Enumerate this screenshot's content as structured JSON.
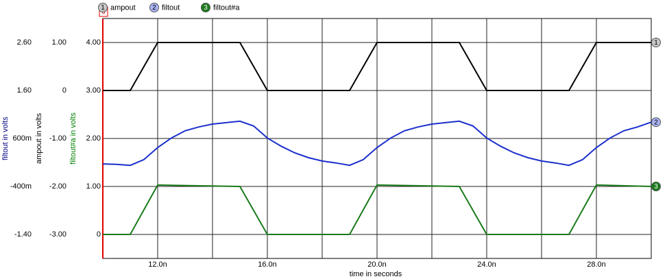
{
  "chart_data": {
    "type": "line",
    "cursor_label": "0",
    "x_label": "time in seconds",
    "xlim": [
      10,
      30
    ],
    "xticks": [
      {
        "value": 12,
        "label": "12.0n"
      },
      {
        "value": 16,
        "label": "16.0n"
      },
      {
        "value": 20,
        "label": "20.0n"
      },
      {
        "value": 24,
        "label": "24.0n"
      },
      {
        "value": 28,
        "label": "28.0n"
      }
    ],
    "xgrid_minor": [
      14,
      18,
      22,
      26
    ],
    "grid": true,
    "axes": [
      {
        "label": "filtout in volts",
        "color": "#000080",
        "ylim": [
          -1.9,
          3.1
        ],
        "yticks": [
          {
            "value": -1.4,
            "label": "-1.40"
          },
          {
            "value": -0.4,
            "label": "-400m"
          },
          {
            "value": 0.6,
            "label": "600m"
          },
          {
            "value": 1.6,
            "label": "1.60"
          },
          {
            "value": 2.6,
            "label": "2.60"
          }
        ]
      },
      {
        "label": "ampout in volts",
        "color": "#000000",
        "ylim": [
          -3.5,
          1.5
        ],
        "yticks": [
          {
            "value": -3,
            "label": "-3.00"
          },
          {
            "value": -2,
            "label": "-2.00"
          },
          {
            "value": -1,
            "label": "-1.00"
          },
          0,
          {
            "value": 1,
            "label": "1.00"
          }
        ]
      },
      {
        "label": "filtout#a in volts",
        "color": "#008000",
        "ylim": [
          -0.5,
          4.5
        ],
        "yticks": [
          0,
          {
            "value": 1,
            "label": "1.00"
          },
          {
            "value": 2,
            "label": "2.00"
          },
          {
            "value": 3,
            "label": "3.00"
          },
          {
            "value": 4,
            "label": "4.00"
          }
        ]
      }
    ],
    "series": [
      {
        "name": "ampout",
        "marker": "1",
        "marker_fill": "#c8c8c8",
        "marker_text": "#000000",
        "color": "#000000",
        "axis": 1,
        "x": [
          10,
          11,
          12,
          15,
          16,
          19,
          20,
          23,
          24,
          27,
          28,
          30
        ],
        "values": [
          0,
          0,
          1,
          1,
          0,
          0,
          1,
          1,
          0,
          0,
          1,
          1
        ]
      },
      {
        "name": "filtout",
        "marker": "2",
        "marker_fill": "#aab4f5",
        "marker_text": "#000000",
        "color": "#1a2ecc",
        "axis": 0,
        "x": [
          10,
          10.5,
          11,
          11.5,
          12,
          12.5,
          13,
          13.5,
          14,
          14.5,
          15,
          15.5,
          16,
          16.5,
          17,
          17.5,
          18,
          18.5,
          19,
          19.5,
          20,
          20.5,
          21,
          21.5,
          22,
          22.5,
          23,
          23.5,
          24,
          24.5,
          25,
          25.5,
          26,
          26.5,
          27,
          27.5,
          28,
          28.5,
          29,
          29.5,
          30
        ],
        "values": [
          0.07,
          0.06,
          0.04,
          0.16,
          0.41,
          0.61,
          0.76,
          0.84,
          0.9,
          0.93,
          0.96,
          0.86,
          0.61,
          0.44,
          0.3,
          0.2,
          0.13,
          0.09,
          0.04,
          0.16,
          0.41,
          0.61,
          0.76,
          0.84,
          0.9,
          0.93,
          0.96,
          0.86,
          0.61,
          0.44,
          0.3,
          0.2,
          0.13,
          0.09,
          0.04,
          0.16,
          0.41,
          0.61,
          0.76,
          0.84,
          0.94
        ]
      },
      {
        "name": "filtout#a",
        "marker": "3",
        "marker_fill": "#1a7a1a",
        "marker_text": "#ffffff",
        "color": "#1a7a1a",
        "axis": 2,
        "x": [
          10,
          11,
          12,
          15,
          16,
          19,
          20,
          23,
          24,
          27,
          28,
          30
        ],
        "values": [
          0,
          0,
          1.03,
          1,
          0,
          0,
          1.03,
          1,
          0,
          0,
          1.03,
          1
        ]
      }
    ]
  }
}
